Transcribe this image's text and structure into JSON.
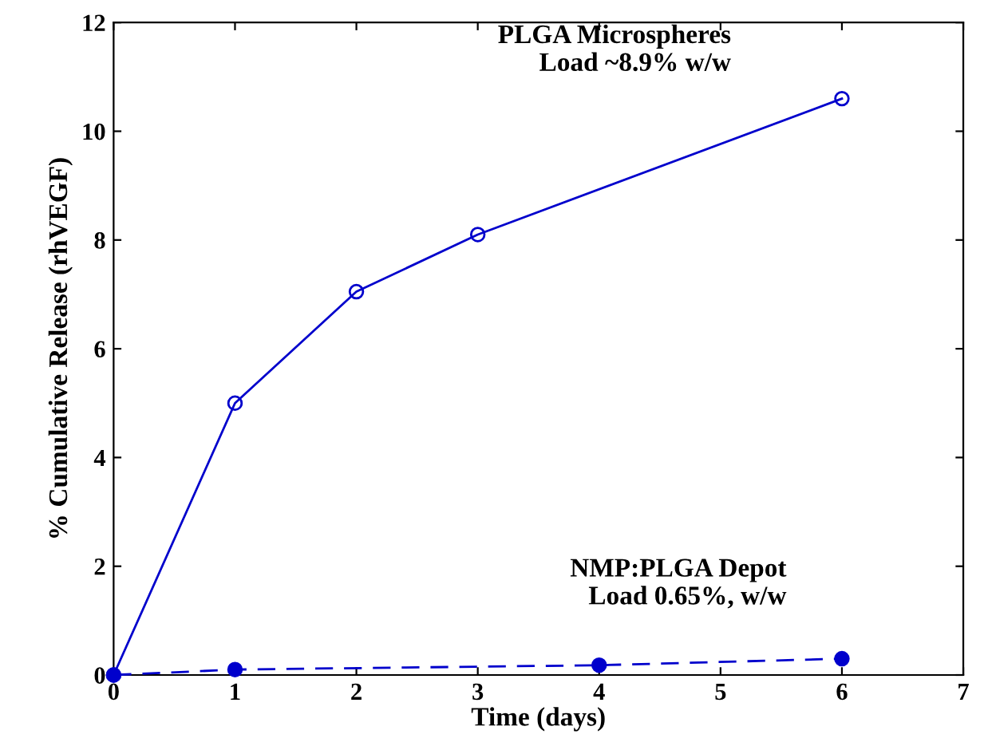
{
  "chart_data": {
    "type": "line",
    "xlabel": "Time (days)",
    "ylabel": "% Cumulative Release (rhVEGF)",
    "xlim": [
      0,
      7
    ],
    "xticks": [
      0,
      1,
      2,
      3,
      4,
      5,
      6,
      7
    ],
    "ylim": [
      0,
      12
    ],
    "yticks": [
      0,
      2,
      4,
      6,
      8,
      10,
      12
    ],
    "grid": false,
    "legend": false,
    "series": [
      {
        "name": "PLGA Microspheres\nLoad ~8.9% w/w",
        "color": "#0000cc",
        "x": [
          0,
          1,
          2,
          3,
          6
        ],
        "values": [
          0,
          5.0,
          7.05,
          8.1,
          10.6
        ],
        "marker": "circle",
        "line_style": "solid"
      },
      {
        "name": "NMP:PLGA Depot\nLoad 0.65%, w/w",
        "color": "#0000cc",
        "x": [
          0,
          1,
          4,
          6
        ],
        "values": [
          0,
          0.1,
          0.18,
          0.3
        ],
        "marker": "circle",
        "line_style": "dashed"
      }
    ]
  }
}
